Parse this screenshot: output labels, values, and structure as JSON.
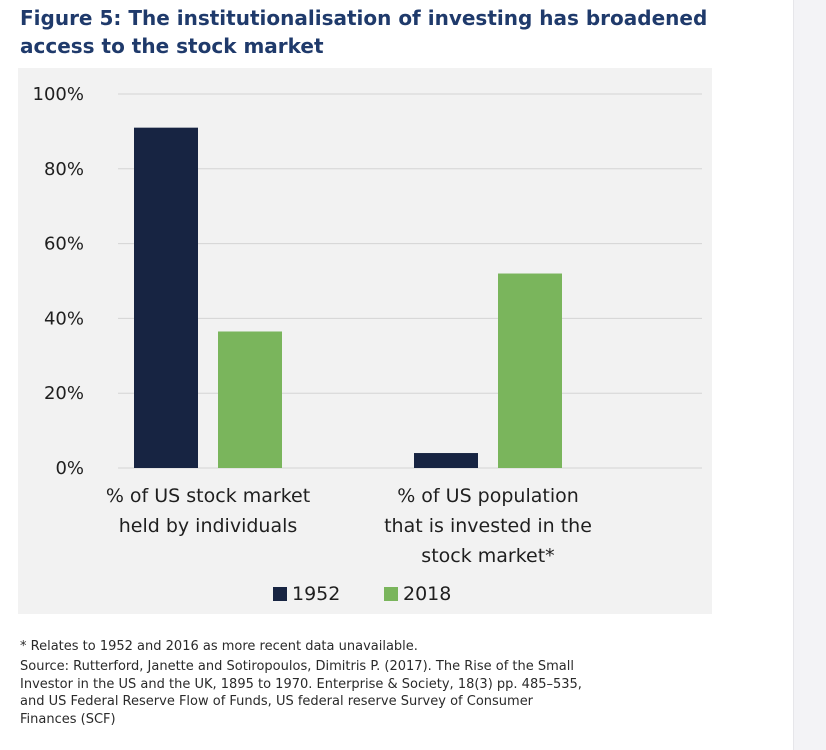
{
  "figure": {
    "title_lines": [
      "Figure 5: The institutionalisation of investing has broadened",
      "access to the stock market"
    ],
    "footnote": "* Relates to 1952 and 2016 as more recent data unavailable.",
    "source_lines": [
      "Source: Rutterford, Janette and Sotiropoulos, Dimitris P. (2017). The Rise of the Small",
      "Investor in the US and the UK, 1895 to 1970. Enterprise & Society, 18(3) pp. 485–535,",
      "and US Federal Reserve Flow of Funds, US federal reserve Survey of Consumer",
      "Finances (SCF)"
    ]
  },
  "chart_data": {
    "type": "bar",
    "title": "",
    "xlabel": "",
    "ylabel": "",
    "ylim": [
      0,
      100
    ],
    "y_ticks": [
      "0%",
      "20%",
      "40%",
      "60%",
      "80%",
      "100%"
    ],
    "grid": true,
    "legend_position": "bottom",
    "categories": [
      [
        "% of US stock market",
        "held by individuals"
      ],
      [
        "% of US population",
        "that is invested in the",
        "stock market*"
      ]
    ],
    "series": [
      {
        "name": "1952",
        "color": "#172442",
        "values": [
          91,
          4
        ]
      },
      {
        "name": "2018",
        "color": "#7ab55c",
        "values": [
          36.5,
          52
        ]
      }
    ]
  },
  "colors": {
    "title": "#1f3a6b",
    "chart_background": "#f2f2f2",
    "grid": "#d4d4d4"
  }
}
